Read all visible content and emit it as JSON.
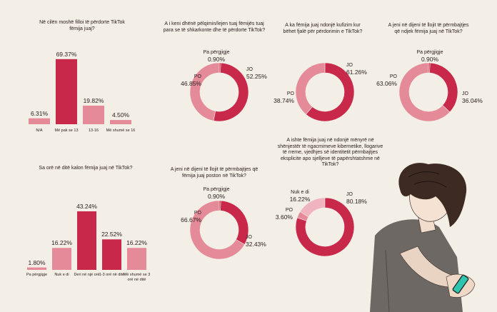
{
  "chart_data": [
    {
      "type": "bar",
      "title": "Në cilën moshë filloi të përdorte TikTok fëmija juaj?",
      "categories": [
        "N/A",
        "Më pak se 13",
        "13-16",
        "Më shumë se 16"
      ],
      "values": [
        6.31,
        69.37,
        19.82,
        4.5
      ],
      "value_labels": [
        "6.31%",
        "69.37%",
        "19.82%",
        "4.50%"
      ],
      "ylim": [
        0,
        70
      ]
    },
    {
      "type": "pie",
      "title": "A i keni dhënë pëlqimin/lejen tuaj fëmijës tuaj para se të shkarkonte dhe të përdorte TikTok?",
      "categories": [
        "Pa përgjigje",
        "JO",
        "PO"
      ],
      "values": [
        0.9,
        52.25,
        46.85
      ],
      "value_labels": [
        "0.90%",
        "52.25%",
        "46.85%"
      ]
    },
    {
      "type": "pie",
      "title": "A ka fëmija juaj ndonjë kufizim kur bëhet fjalë për përdorimin e TikTok?",
      "categories": [
        "JO",
        "PO"
      ],
      "values": [
        61.26,
        38.74
      ],
      "value_labels": [
        "61.26%",
        "38.74%"
      ]
    },
    {
      "type": "pie",
      "title": "A jeni në dijeni të llojit të përmbajtjes që ndjek fëmija juaj në TikTok?",
      "categories": [
        "Pa përgjigje",
        "JO",
        "PO"
      ],
      "values": [
        0.9,
        36.04,
        63.06
      ],
      "value_labels": [
        "0.90%",
        "36.04%",
        "63.06%"
      ]
    },
    {
      "type": "bar",
      "title": "Sa orë në ditë kalon fëmija juaj në TikTok?",
      "categories": [
        "Pa përgjigje",
        "Nuk e di",
        "Deri në një orë",
        "1-3 orë në ditë",
        "Më shumë se 3 orë në ditë"
      ],
      "values": [
        1.8,
        16.22,
        43.24,
        22.52,
        16.22
      ],
      "value_labels": [
        "1.80%",
        "16.22%",
        "43.24%",
        "22.52%",
        "16.22%"
      ],
      "ylim": [
        0,
        43.24
      ]
    },
    {
      "type": "pie",
      "title": "A jeni në dijeni të llojit të përmbajtjes që fëmija juaj poston në TikTok?",
      "categories": [
        "Pa përgjigje",
        "JO",
        "PO"
      ],
      "values": [
        0.9,
        32.43,
        66.67
      ],
      "value_labels": [
        "0.90%",
        "32.43%",
        "66.67%"
      ]
    },
    {
      "type": "pie",
      "title": "A ishte fëmija juaj në ndonjë mënyrë në shënjestër të ngacmimeve kibernetike, llogarive të rreme, vjedhjes së identitetit përmbajtjes eksplicite apo sjelljeve të papërshtatshme në TikTok?",
      "categories": [
        "Nuk e di",
        "JO",
        "PO"
      ],
      "values": [
        16.22,
        80.18,
        3.6
      ],
      "value_labels": [
        "16.22%",
        "80.18%",
        "3.60%"
      ]
    }
  ],
  "colors": {
    "dark": "#c8284a",
    "light": "#e58a98",
    "pale": "#efb4bd",
    "background": "#f4efe6"
  },
  "illustration": "boy-with-phone-illustration"
}
